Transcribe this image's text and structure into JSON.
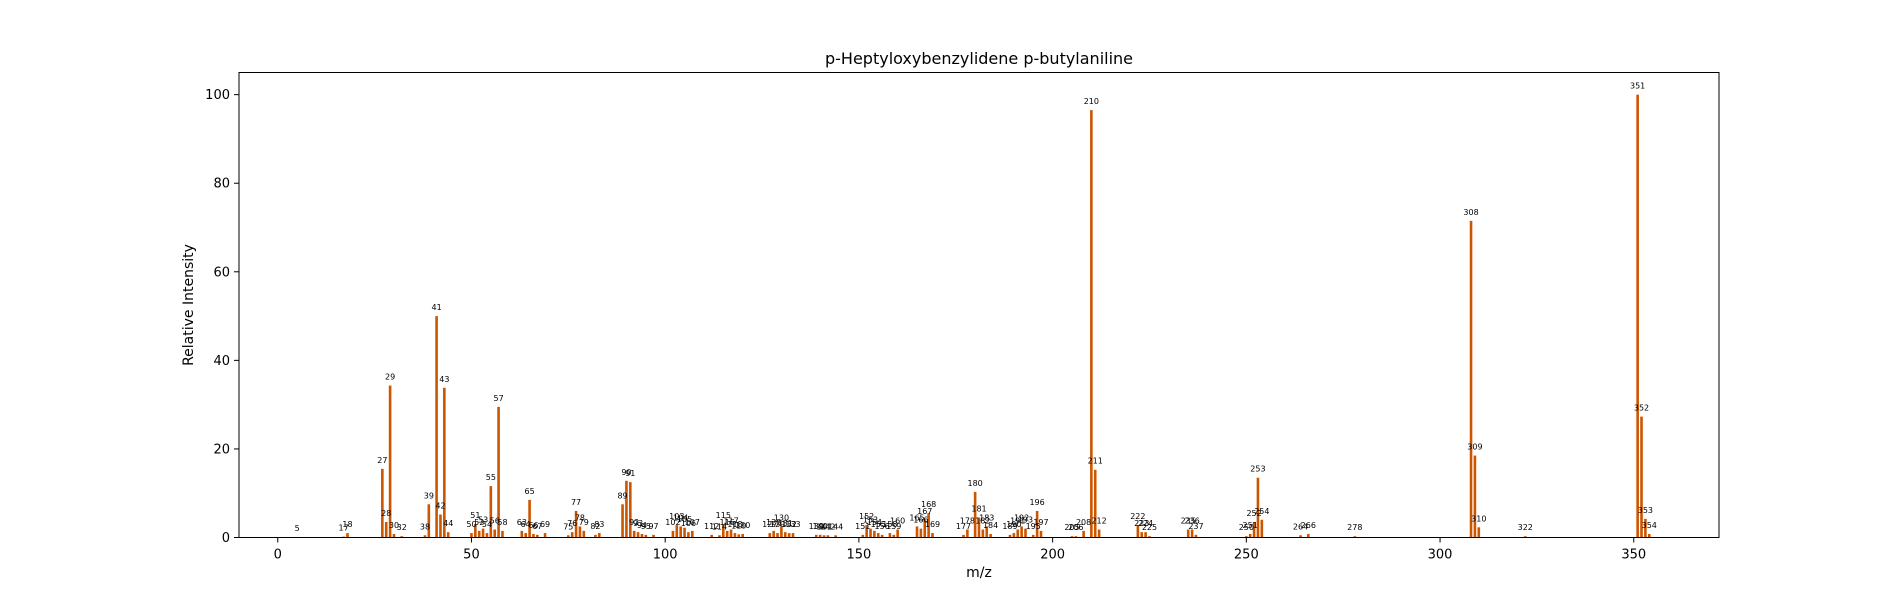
{
  "chart_data": {
    "type": "bar",
    "title": "p-Heptyloxybenzylidene p-butylaniline",
    "xlabel": "m/z",
    "ylabel": "Relative Intensity",
    "xlim": [
      -10,
      372
    ],
    "ylim": [
      0,
      105
    ],
    "xticks": [
      0,
      50,
      100,
      150,
      200,
      250,
      300,
      350
    ],
    "yticks": [
      0,
      20,
      40,
      60,
      80,
      100
    ],
    "bar_color": "#cc5500",
    "grid": false,
    "legend": "none",
    "peaks": [
      {
        "mz": 5,
        "intensity": 0.1,
        "label": "5"
      },
      {
        "mz": 17,
        "intensity": 0.2,
        "label": "17"
      },
      {
        "mz": 18,
        "intensity": 1.0,
        "label": "18"
      },
      {
        "mz": 27,
        "intensity": 15.5,
        "label": "27"
      },
      {
        "mz": 28,
        "intensity": 3.5,
        "label": "28"
      },
      {
        "mz": 29,
        "intensity": 34.3,
        "label": "29"
      },
      {
        "mz": 30,
        "intensity": 0.8,
        "label": "30"
      },
      {
        "mz": 32,
        "intensity": 0.3,
        "label": "32"
      },
      {
        "mz": 38,
        "intensity": 0.5,
        "label": "38"
      },
      {
        "mz": 39,
        "intensity": 7.5,
        "label": "39"
      },
      {
        "mz": 41,
        "intensity": 50.0,
        "label": "41"
      },
      {
        "mz": 42,
        "intensity": 5.2,
        "label": "42"
      },
      {
        "mz": 43,
        "intensity": 33.8,
        "label": "43"
      },
      {
        "mz": 44,
        "intensity": 1.2,
        "label": "44"
      },
      {
        "mz": 50,
        "intensity": 1.0,
        "label": "50"
      },
      {
        "mz": 51,
        "intensity": 3.0,
        "label": "51"
      },
      {
        "mz": 52,
        "intensity": 1.5,
        "label": "52"
      },
      {
        "mz": 53,
        "intensity": 2.0,
        "label": "53"
      },
      {
        "mz": 54,
        "intensity": 1.0,
        "label": "54"
      },
      {
        "mz": 55,
        "intensity": 11.6,
        "label": "55"
      },
      {
        "mz": 56,
        "intensity": 1.8,
        "label": "56"
      },
      {
        "mz": 57,
        "intensity": 29.5,
        "label": "57"
      },
      {
        "mz": 58,
        "intensity": 1.5,
        "label": "58"
      },
      {
        "mz": 63,
        "intensity": 1.5,
        "label": "63"
      },
      {
        "mz": 64,
        "intensity": 1.0,
        "label": "64"
      },
      {
        "mz": 65,
        "intensity": 8.5,
        "label": "65"
      },
      {
        "mz": 66,
        "intensity": 0.8,
        "label": "66"
      },
      {
        "mz": 67,
        "intensity": 0.6,
        "label": "67"
      },
      {
        "mz": 69,
        "intensity": 1.0,
        "label": "69"
      },
      {
        "mz": 75,
        "intensity": 0.5,
        "label": "75"
      },
      {
        "mz": 76,
        "intensity": 1.2,
        "label": "76"
      },
      {
        "mz": 77,
        "intensity": 6.0,
        "label": "77"
      },
      {
        "mz": 78,
        "intensity": 2.5,
        "label": "78"
      },
      {
        "mz": 79,
        "intensity": 1.5,
        "label": "79"
      },
      {
        "mz": 82,
        "intensity": 0.6,
        "label": "82"
      },
      {
        "mz": 83,
        "intensity": 1.0,
        "label": "83"
      },
      {
        "mz": 89,
        "intensity": 7.5,
        "label": "89"
      },
      {
        "mz": 90,
        "intensity": 12.8,
        "label": "90"
      },
      {
        "mz": 91,
        "intensity": 12.5,
        "label": "91"
      },
      {
        "mz": 92,
        "intensity": 1.5,
        "label": "92"
      },
      {
        "mz": 93,
        "intensity": 1.2,
        "label": "93"
      },
      {
        "mz": 94,
        "intensity": 0.8,
        "label": "94"
      },
      {
        "mz": 95,
        "intensity": 0.6,
        "label": "95"
      },
      {
        "mz": 97,
        "intensity": 0.6,
        "label": "97"
      },
      {
        "mz": 102,
        "intensity": 1.5,
        "label": "102"
      },
      {
        "mz": 103,
        "intensity": 2.8,
        "label": "103"
      },
      {
        "mz": 104,
        "intensity": 2.5,
        "label": "104"
      },
      {
        "mz": 105,
        "intensity": 2.2,
        "label": "105"
      },
      {
        "mz": 106,
        "intensity": 1.2,
        "label": "106"
      },
      {
        "mz": 107,
        "intensity": 1.5,
        "label": "107"
      },
      {
        "mz": 112,
        "intensity": 0.6,
        "label": "112"
      },
      {
        "mz": 114,
        "intensity": 0.5,
        "label": "114"
      },
      {
        "mz": 115,
        "intensity": 3.0,
        "label": "115"
      },
      {
        "mz": 116,
        "intensity": 1.5,
        "label": "116"
      },
      {
        "mz": 117,
        "intensity": 1.8,
        "label": "117"
      },
      {
        "mz": 118,
        "intensity": 1.0,
        "label": "118"
      },
      {
        "mz": 119,
        "intensity": 0.7,
        "label": "119"
      },
      {
        "mz": 120,
        "intensity": 0.8,
        "label": "120"
      },
      {
        "mz": 127,
        "intensity": 1.0,
        "label": "127"
      },
      {
        "mz": 128,
        "intensity": 1.5,
        "label": "128"
      },
      {
        "mz": 129,
        "intensity": 1.0,
        "label": "129"
      },
      {
        "mz": 130,
        "intensity": 2.5,
        "label": "130"
      },
      {
        "mz": 131,
        "intensity": 1.2,
        "label": "131"
      },
      {
        "mz": 132,
        "intensity": 1.0,
        "label": "132"
      },
      {
        "mz": 133,
        "intensity": 1.0,
        "label": "133"
      },
      {
        "mz": 139,
        "intensity": 0.6,
        "label": "139"
      },
      {
        "mz": 140,
        "intensity": 0.6,
        "label": "140"
      },
      {
        "mz": 141,
        "intensity": 0.5,
        "label": "141"
      },
      {
        "mz": 142,
        "intensity": 0.5,
        "label": "142"
      },
      {
        "mz": 144,
        "intensity": 0.5,
        "label": "144"
      },
      {
        "mz": 151,
        "intensity": 0.6,
        "label": "151"
      },
      {
        "mz": 152,
        "intensity": 2.8,
        "label": "152"
      },
      {
        "mz": 153,
        "intensity": 2.0,
        "label": "153"
      },
      {
        "mz": 154,
        "intensity": 1.5,
        "label": "154"
      },
      {
        "mz": 155,
        "intensity": 1.0,
        "label": "155"
      },
      {
        "mz": 156,
        "intensity": 0.6,
        "label": "156"
      },
      {
        "mz": 158,
        "intensity": 1.0,
        "label": "158"
      },
      {
        "mz": 159,
        "intensity": 0.6,
        "label": "159"
      },
      {
        "mz": 160,
        "intensity": 1.8,
        "label": "160"
      },
      {
        "mz": 165,
        "intensity": 2.5,
        "label": "165"
      },
      {
        "mz": 166,
        "intensity": 2.0,
        "label": "166"
      },
      {
        "mz": 167,
        "intensity": 4.0,
        "label": "167"
      },
      {
        "mz": 168,
        "intensity": 5.5,
        "label": "168"
      },
      {
        "mz": 169,
        "intensity": 1.0,
        "label": "169"
      },
      {
        "mz": 177,
        "intensity": 0.6,
        "label": "177"
      },
      {
        "mz": 178,
        "intensity": 1.8,
        "label": "178"
      },
      {
        "mz": 180,
        "intensity": 10.3,
        "label": "180"
      },
      {
        "mz": 181,
        "intensity": 4.5,
        "label": "181"
      },
      {
        "mz": 182,
        "intensity": 1.8,
        "label": "182"
      },
      {
        "mz": 183,
        "intensity": 2.5,
        "label": "183"
      },
      {
        "mz": 184,
        "intensity": 0.8,
        "label": "184"
      },
      {
        "mz": 189,
        "intensity": 0.6,
        "label": "189"
      },
      {
        "mz": 190,
        "intensity": 1.0,
        "label": "190"
      },
      {
        "mz": 191,
        "intensity": 1.8,
        "label": "191"
      },
      {
        "mz": 192,
        "intensity": 2.5,
        "label": "192"
      },
      {
        "mz": 193,
        "intensity": 2.0,
        "label": "193"
      },
      {
        "mz": 195,
        "intensity": 0.6,
        "label": "195"
      },
      {
        "mz": 196,
        "intensity": 6.0,
        "label": "196"
      },
      {
        "mz": 197,
        "intensity": 1.5,
        "label": "197"
      },
      {
        "mz": 205,
        "intensity": 0.3,
        "label": "205"
      },
      {
        "mz": 206,
        "intensity": 0.3,
        "label": "206"
      },
      {
        "mz": 208,
        "intensity": 1.5,
        "label": "208"
      },
      {
        "mz": 210,
        "intensity": 96.5,
        "label": "210"
      },
      {
        "mz": 211,
        "intensity": 15.3,
        "label": "211"
      },
      {
        "mz": 212,
        "intensity": 1.8,
        "label": "212"
      },
      {
        "mz": 222,
        "intensity": 2.8,
        "label": "222"
      },
      {
        "mz": 223,
        "intensity": 1.2,
        "label": "223"
      },
      {
        "mz": 224,
        "intensity": 1.2,
        "label": "224"
      },
      {
        "mz": 225,
        "intensity": 0.3,
        "label": "225"
      },
      {
        "mz": 235,
        "intensity": 1.8,
        "label": "235"
      },
      {
        "mz": 236,
        "intensity": 1.8,
        "label": "236"
      },
      {
        "mz": 237,
        "intensity": 0.6,
        "label": "237"
      },
      {
        "mz": 250,
        "intensity": 0.3,
        "label": "250"
      },
      {
        "mz": 251,
        "intensity": 0.8,
        "label": "251"
      },
      {
        "mz": 252,
        "intensity": 3.5,
        "label": "252"
      },
      {
        "mz": 253,
        "intensity": 13.5,
        "label": "253"
      },
      {
        "mz": 254,
        "intensity": 4.0,
        "label": "254"
      },
      {
        "mz": 264,
        "intensity": 0.5,
        "label": "264"
      },
      {
        "mz": 266,
        "intensity": 0.8,
        "label": "266"
      },
      {
        "mz": 278,
        "intensity": 0.3,
        "label": "278"
      },
      {
        "mz": 308,
        "intensity": 71.5,
        "label": "308"
      },
      {
        "mz": 309,
        "intensity": 18.5,
        "label": "309"
      },
      {
        "mz": 310,
        "intensity": 2.3,
        "label": "310"
      },
      {
        "mz": 322,
        "intensity": 0.3,
        "label": "322"
      },
      {
        "mz": 351,
        "intensity": 100.0,
        "label": "351"
      },
      {
        "mz": 352,
        "intensity": 27.3,
        "label": "352"
      },
      {
        "mz": 353,
        "intensity": 4.2,
        "label": "353"
      },
      {
        "mz": 354,
        "intensity": 0.8,
        "label": "354"
      }
    ]
  }
}
